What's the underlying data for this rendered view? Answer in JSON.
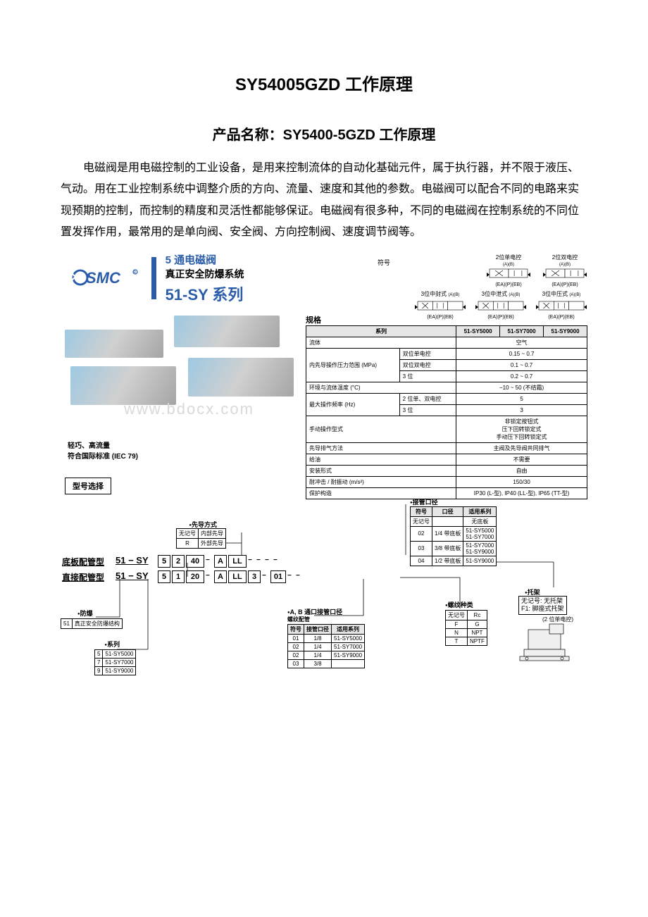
{
  "page": {
    "title": "SY54005GZD 工作原理",
    "subtitle": "产品名称：SY5400-5GZD 工作原理",
    "intro": "电磁阀是用电磁控制的工业设备，是用来控制流体的自动化基础元件，属于执行器，并不限于液压、气动。用在工业控制系统中调整介质的方向、流量、速度和其他的参数。电磁阀可以配合不同的电路来实现预期的控制，而控制的精度和灵活性都能够保证。电磁阀有很多种，不同的电磁阀在控制系统的不同位置发挥作用，最常用的是单向阀、安全阀、方向控制阀、速度调节阀等。"
  },
  "brand": {
    "logo_text": "SMC",
    "line1": "5 通电磁阀",
    "line2": "真正安全防爆系统",
    "series": "51-SY 系列"
  },
  "symbols": {
    "label": "符号",
    "top": [
      {
        "cap": "2位单电控",
        "sub": "(EA)(P)(EB)",
        "ports": "(A)(B)"
      },
      {
        "cap": "2位双电控",
        "sub": "(EA)(P)(EB)",
        "ports": "(A)(B)"
      }
    ],
    "bottom": [
      {
        "cap": "3位中封式",
        "sub": "(EA)(P)(EB)",
        "ports": "(A)(B)"
      },
      {
        "cap": "3位中泄式",
        "sub": "(EA)(P)(EB)",
        "ports": "(A)(B)"
      },
      {
        "cap": "3位中压式",
        "sub": "(EA)(P)(EB)",
        "ports": "(A)(B)"
      }
    ]
  },
  "features": {
    "l1": "轻巧、高流量",
    "l2": "符合国际标准 (IEC 79)"
  },
  "watermark": "www.bdocx.com",
  "spec": {
    "label": "规格",
    "header": [
      "系列",
      "51-SY5000",
      "51-SY7000",
      "51-SY9000"
    ],
    "rows": [
      {
        "h": "流体",
        "sub": null,
        "v": "空气",
        "span": 3
      },
      {
        "h": "内先导操作压力范围 (MPa)",
        "sub": "双位单电控",
        "v": "0.15 ~ 0.7",
        "span": 3,
        "rowspan": 3
      },
      {
        "h": null,
        "sub": "双位双电控",
        "v": "0.1 ~ 0.7",
        "span": 3
      },
      {
        "h": null,
        "sub": "3 位",
        "v": "0.2 ~ 0.7",
        "span": 3
      },
      {
        "h": "环境与流体温度 (°C)",
        "sub": null,
        "v": "−10 ~ 50 (不结霜)",
        "span": 3
      },
      {
        "h": "最大操作频率 (Hz)",
        "sub": "2 位单、双电控",
        "v": "5",
        "span": 3,
        "rowspan": 2
      },
      {
        "h": null,
        "sub": "3 位",
        "v": "3",
        "span": 3
      },
      {
        "h": "手动操作型式",
        "sub": null,
        "v": "非锁定按钮式\n压下回转锁定式\n手动压下回转锁定式",
        "span": 3
      },
      {
        "h": "先导排气方法",
        "sub": null,
        "v": "主阀及先导阀共同排气",
        "span": 3
      },
      {
        "h": "给油",
        "sub": null,
        "v": "不需要",
        "span": 3
      },
      {
        "h": "安装形式",
        "sub": null,
        "v": "自由",
        "span": 3
      },
      {
        "h": "耐冲击 / 耐振动 (m/s²)",
        "sub": null,
        "v": "150/30",
        "span": 3
      },
      {
        "h": "保护构造",
        "sub": null,
        "v": "IP30 (L-型), IP40 (LL-型), IP65 (TT-型)",
        "span": 3
      }
    ]
  },
  "model_select": "型号选择",
  "ordering": {
    "type_labels": {
      "base": "底板配管型",
      "direct": "直接配管型"
    },
    "prefix": "51 − SY",
    "segments_base": [
      "5",
      "2",
      "40",
      "",
      "A",
      "LL",
      "",
      "",
      "",
      ""
    ],
    "segments_direct": [
      "5",
      "1",
      "20",
      "",
      "A",
      "LL",
      "3",
      "",
      "01",
      "",
      ""
    ],
    "pilot": {
      "title": "先导方式",
      "rows": [
        [
          "无记号",
          "内部先导"
        ],
        [
          "R",
          "外部先导"
        ]
      ]
    },
    "explosion": {
      "title": "防爆",
      "rows": [
        [
          "51",
          "真正安全防爆结构"
        ]
      ]
    },
    "series": {
      "title": "系列",
      "rows": [
        [
          "5",
          "51-SY5000"
        ],
        [
          "7",
          "51-SY7000"
        ],
        [
          "9",
          "51-SY9000"
        ]
      ]
    },
    "port_diameter": {
      "title": "接管口径",
      "header": [
        "符号",
        "口径",
        "适用系列"
      ],
      "rows": [
        [
          "无记号",
          "",
          "无底板"
        ],
        [
          "02",
          "1/4 带底板",
          "51-SY5000\n51-SY7000"
        ],
        [
          "03",
          "3/8 带底板",
          "51-SY7000\n51-SY9000"
        ],
        [
          "04",
          "1/2 带底板",
          "51-SY9000"
        ]
      ]
    },
    "thread": {
      "title": "螺纹种类",
      "rows": [
        [
          "无记号",
          "Rc"
        ],
        [
          "F",
          "G"
        ],
        [
          "N",
          "NPT"
        ],
        [
          "T",
          "NPTF"
        ]
      ]
    },
    "bracket": {
      "title": "托架",
      "lines": [
        "无记号: 无托架",
        "F1: 脚座式托架"
      ],
      "note": "(2 位单电控)"
    },
    "ab_port": {
      "title": "A, B 通口接管口径",
      "subtitle": "螺纹配管",
      "header": [
        "符号",
        "接管口径",
        "适用系列"
      ],
      "rows": [
        [
          "01",
          "1/8",
          "51-SY5000"
        ],
        [
          "02",
          "1/4",
          "51-SY7000"
        ],
        [
          "02",
          "1/4",
          "51-SY9000"
        ],
        [
          "03",
          "3/8",
          ""
        ]
      ]
    }
  }
}
